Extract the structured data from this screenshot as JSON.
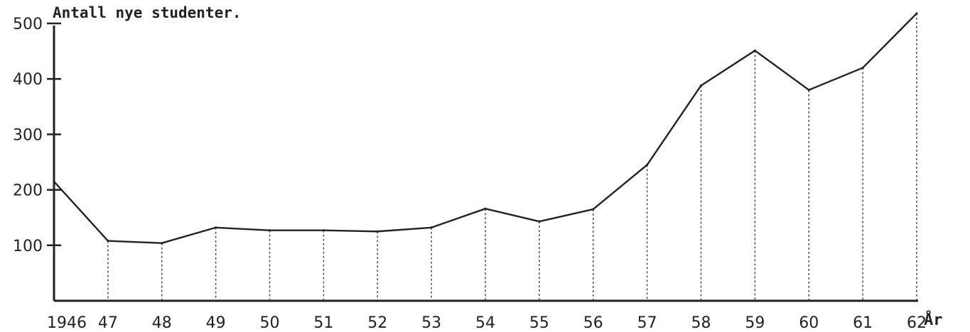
{
  "chart_data": {
    "type": "line",
    "ylabel": "Antall nye studenter.",
    "xlabel": "År",
    "x_tick_labels": [
      "1946",
      "47",
      "48",
      "49",
      "50",
      "51",
      "52",
      "53",
      "54",
      "55",
      "56",
      "57",
      "58",
      "59",
      "60",
      "61",
      "62"
    ],
    "x": [
      1946,
      1947,
      1948,
      1949,
      1950,
      1951,
      1952,
      1953,
      1954,
      1955,
      1956,
      1957,
      1958,
      1959,
      1960,
      1961,
      1962
    ],
    "y_tick_labels": [
      "100",
      "200",
      "300",
      "400",
      "500"
    ],
    "y_ticks": [
      100,
      200,
      300,
      400,
      500
    ],
    "ylim": [
      0,
      500
    ],
    "series": [
      {
        "values": [
          215,
          108,
          104,
          132,
          127,
          127,
          125,
          132,
          166,
          143,
          165,
          245,
          388,
          451,
          380,
          420,
          518
        ]
      }
    ],
    "drop_lines": true,
    "grid": false,
    "legend": "none"
  }
}
